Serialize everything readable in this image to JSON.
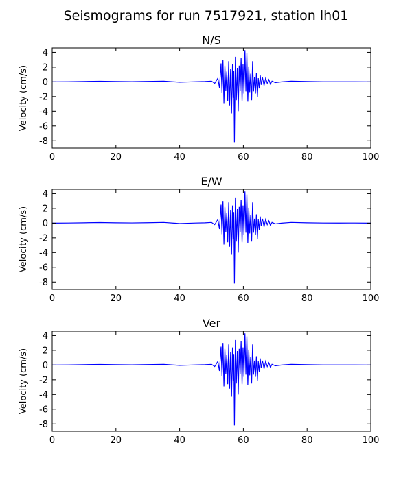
{
  "figure": {
    "title": "Seismograms for run 7517921, station lh01"
  },
  "chart_data": [
    {
      "type": "line",
      "title": "N/S",
      "xlabel": "",
      "ylabel": "Velocity (cm/s)",
      "xlim": [
        0,
        100
      ],
      "ylim": [
        -9,
        4.6
      ],
      "xticks": [
        0,
        20,
        40,
        60,
        80,
        100
      ],
      "yticks": [
        -8,
        -6,
        -4,
        -2,
        0,
        2,
        4
      ],
      "grid": false,
      "line_color": "#0000ff",
      "series": [
        {
          "x": [
            0,
            5,
            10,
            15,
            20,
            25,
            30,
            35,
            40,
            45,
            48,
            50,
            51,
            52,
            52.5,
            53,
            53.3,
            53.6,
            53.9,
            54.2,
            54.5,
            54.8,
            55.1,
            55.4,
            55.7,
            56,
            56.3,
            56.6,
            56.8,
            57,
            57.2,
            57.5,
            57.8,
            58.1,
            58.4,
            58.7,
            59,
            59.3,
            59.6,
            59.9,
            60.2,
            60.5,
            60.8,
            61.1,
            61.4,
            61.7,
            62,
            62.3,
            62.6,
            62.9,
            63.2,
            63.5,
            63.8,
            64.1,
            64.4,
            64.7,
            65,
            65.3,
            65.6,
            66,
            66.5,
            67,
            67.5,
            68,
            68.5,
            69,
            70,
            72,
            75,
            80,
            85,
            90,
            95,
            100
          ],
          "y": [
            0,
            0.02,
            0.05,
            0.08,
            0.05,
            0.03,
            0.06,
            0.1,
            -0.05,
            0.02,
            0.05,
            0.1,
            -0.2,
            0.5,
            -0.8,
            2.5,
            -1.5,
            3,
            -2.9,
            2.2,
            -1.2,
            1.4,
            -2.6,
            2.8,
            -3.2,
            1.8,
            -4.3,
            2.4,
            -2.2,
            1.5,
            -8.2,
            3.4,
            -2.5,
            1.9,
            -4,
            2.2,
            -1.2,
            3.2,
            -2.6,
            2.4,
            -1.6,
            4.3,
            -1.3,
            3.9,
            -2.7,
            2.1,
            -1.4,
            1.1,
            -2.5,
            2.8,
            -1.3,
            0.6,
            -1.6,
            1.2,
            -2.1,
            0.5,
            -0.9,
            0.9,
            -0.4,
            0.6,
            -0.5,
            0.5,
            -0.2,
            0.3,
            -0.3,
            0.1,
            -0.1,
            0,
            0.1,
            0.05,
            0.02,
            0.01,
            0.02,
            0
          ]
        }
      ]
    },
    {
      "type": "line",
      "title": "E/W",
      "xlabel": "",
      "ylabel": "Velocity (cm/s)",
      "xlim": [
        0,
        100
      ],
      "ylim": [
        -9,
        4.6
      ],
      "xticks": [
        0,
        20,
        40,
        60,
        80,
        100
      ],
      "yticks": [
        -8,
        -6,
        -4,
        -2,
        0,
        2,
        4
      ],
      "grid": false,
      "line_color": "#0000ff",
      "series": [
        {
          "x": [
            0,
            5,
            10,
            15,
            20,
            25,
            30,
            35,
            40,
            45,
            48,
            50,
            51,
            52,
            52.5,
            53,
            53.3,
            53.6,
            53.9,
            54.2,
            54.5,
            54.8,
            55.1,
            55.4,
            55.7,
            56,
            56.3,
            56.6,
            56.8,
            57,
            57.2,
            57.5,
            57.8,
            58.1,
            58.4,
            58.7,
            59,
            59.3,
            59.6,
            59.9,
            60.2,
            60.5,
            60.8,
            61.1,
            61.4,
            61.7,
            62,
            62.3,
            62.6,
            62.9,
            63.2,
            63.5,
            63.8,
            64.1,
            64.4,
            64.7,
            65,
            65.3,
            65.6,
            66,
            66.5,
            67,
            67.5,
            68,
            68.5,
            69,
            70,
            72,
            75,
            80,
            85,
            90,
            95,
            100
          ],
          "y": [
            0,
            0.02,
            0.05,
            0.08,
            0.05,
            0.03,
            0.06,
            0.1,
            -0.05,
            0.02,
            0.05,
            0.1,
            -0.2,
            0.5,
            -0.8,
            2.5,
            -1.5,
            3,
            -2.9,
            2.2,
            -1.2,
            1.4,
            -2.6,
            2.8,
            -3.2,
            1.8,
            -4.3,
            2.4,
            -2.2,
            1.5,
            -8.2,
            3.4,
            -2.5,
            1.9,
            -4,
            2.2,
            -1.2,
            3.2,
            -2.6,
            2.4,
            -1.6,
            4.3,
            -1.3,
            3.9,
            -2.7,
            2.1,
            -1.4,
            1.1,
            -2.5,
            2.8,
            -1.3,
            0.6,
            -1.6,
            1.2,
            -2.1,
            0.5,
            -0.9,
            0.9,
            -0.4,
            0.6,
            -0.5,
            0.5,
            -0.2,
            0.3,
            -0.3,
            0.1,
            -0.1,
            0,
            0.1,
            0.05,
            0.02,
            0.01,
            0.02,
            0
          ]
        }
      ]
    },
    {
      "type": "line",
      "title": "Ver",
      "xlabel": "",
      "ylabel": "Velocity (cm/s)",
      "xlim": [
        0,
        100
      ],
      "ylim": [
        -9,
        4.6
      ],
      "xticks": [
        0,
        20,
        40,
        60,
        80,
        100
      ],
      "yticks": [
        -8,
        -6,
        -4,
        -2,
        0,
        2,
        4
      ],
      "grid": false,
      "line_color": "#0000ff",
      "series": [
        {
          "x": [
            0,
            5,
            10,
            15,
            20,
            25,
            30,
            35,
            40,
            45,
            48,
            50,
            51,
            52,
            52.5,
            53,
            53.3,
            53.6,
            53.9,
            54.2,
            54.5,
            54.8,
            55.1,
            55.4,
            55.7,
            56,
            56.3,
            56.6,
            56.8,
            57,
            57.2,
            57.5,
            57.8,
            58.1,
            58.4,
            58.7,
            59,
            59.3,
            59.6,
            59.9,
            60.2,
            60.5,
            60.8,
            61.1,
            61.4,
            61.7,
            62,
            62.3,
            62.6,
            62.9,
            63.2,
            63.5,
            63.8,
            64.1,
            64.4,
            64.7,
            65,
            65.3,
            65.6,
            66,
            66.5,
            67,
            67.5,
            68,
            68.5,
            69,
            70,
            72,
            75,
            80,
            85,
            90,
            95,
            100
          ],
          "y": [
            0,
            0.02,
            0.05,
            0.08,
            0.05,
            0.03,
            0.06,
            0.1,
            -0.05,
            0.02,
            0.05,
            0.1,
            -0.2,
            0.5,
            -0.8,
            2.5,
            -1.5,
            3,
            -2.9,
            2.2,
            -1.2,
            1.4,
            -2.6,
            2.8,
            -3.2,
            1.8,
            -4.3,
            2.4,
            -2.2,
            1.5,
            -8.2,
            3.4,
            -2.5,
            1.9,
            -4,
            2.2,
            -1.2,
            3.2,
            -2.6,
            2.4,
            -1.6,
            4.3,
            -1.3,
            3.9,
            -2.7,
            2.1,
            -1.4,
            1.1,
            -2.5,
            2.8,
            -1.3,
            0.6,
            -1.6,
            1.2,
            -2.1,
            0.5,
            -0.9,
            0.9,
            -0.4,
            0.6,
            -0.5,
            0.5,
            -0.2,
            0.3,
            -0.3,
            0.1,
            -0.1,
            0,
            0.1,
            0.05,
            0.02,
            0.01,
            0.02,
            0
          ]
        }
      ]
    }
  ]
}
